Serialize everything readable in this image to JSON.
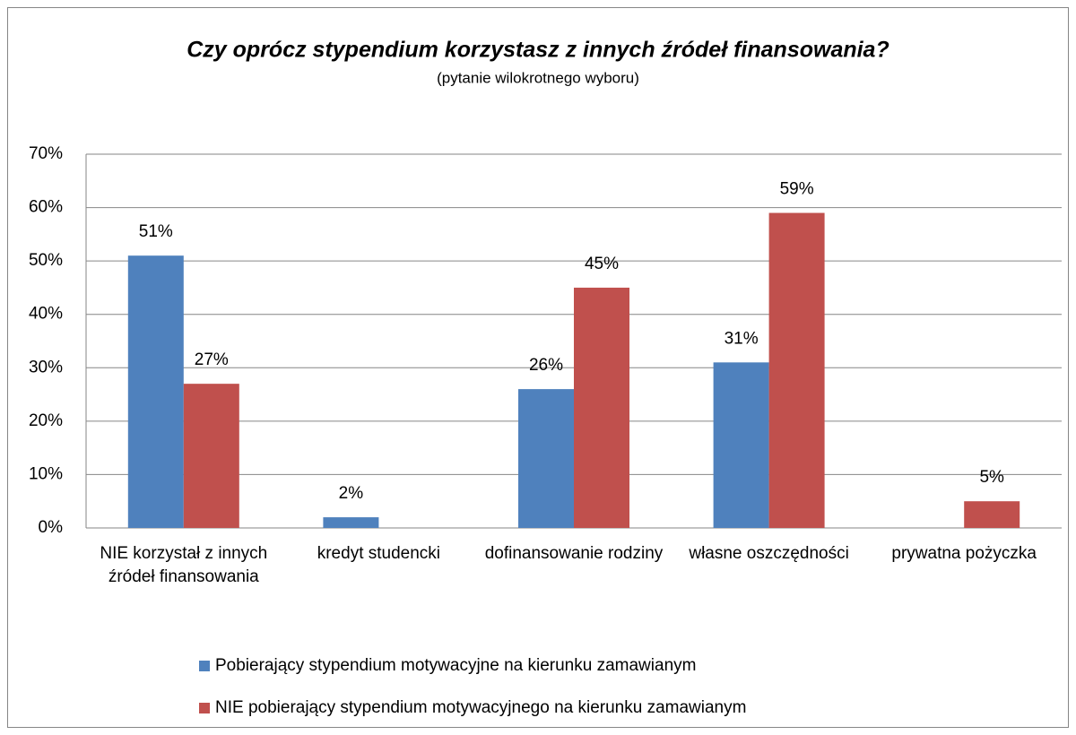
{
  "chart_data": {
    "type": "bar",
    "title": "Czy oprócz stypendium korzystasz z innych źródeł finansowania?",
    "subtitle": "(pytanie wilokrotnego wyboru)",
    "categories": [
      "NIE korzystał z innych źródeł finansowania",
      "kredyt studencki",
      "dofinansowanie rodziny",
      "własne oszczędności",
      "prywatna pożyczka"
    ],
    "series": [
      {
        "name": "Pobierający stypendium motywacyjne na kierunku zamawianym",
        "color": "#4f81bd",
        "values": [
          51,
          2,
          26,
          31,
          null
        ],
        "value_labels": [
          "51%",
          "2%",
          "26%",
          "31%",
          null
        ]
      },
      {
        "name": "NIE pobierający stypendium motywacyjnego na kierunku zamawianym",
        "color": "#c0504d",
        "values": [
          27,
          null,
          45,
          59,
          5
        ],
        "value_labels": [
          "27%",
          null,
          "45%",
          "59%",
          "5%"
        ]
      }
    ],
    "ylim": [
      0,
      70
    ],
    "yticks": [
      {
        "value": 0,
        "label": "0%"
      },
      {
        "value": 10,
        "label": "10%"
      },
      {
        "value": 20,
        "label": "20%"
      },
      {
        "value": 30,
        "label": "30%"
      },
      {
        "value": 40,
        "label": "40%"
      },
      {
        "value": 50,
        "label": "50%"
      },
      {
        "value": 60,
        "label": "60%"
      },
      {
        "value": 70,
        "label": "70%"
      }
    ],
    "grid": true,
    "legend": "bottom"
  }
}
